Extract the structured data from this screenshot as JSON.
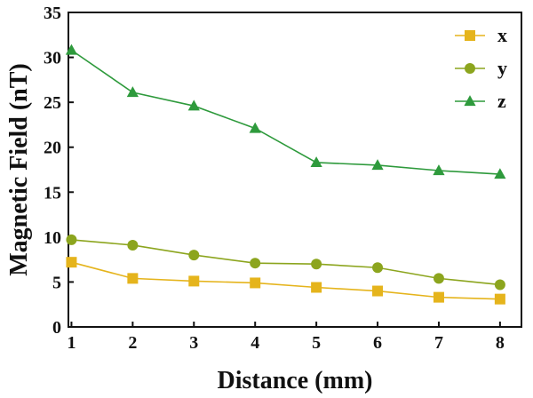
{
  "chart_data": {
    "type": "line",
    "title": "",
    "xlabel": "Distance (mm)",
    "ylabel": "Magnetic Field (nT)",
    "x": [
      1,
      2,
      3,
      4,
      5,
      6,
      7,
      8
    ],
    "xlim": [
      0.95,
      8.35
    ],
    "ylim": [
      0,
      35
    ],
    "xticks": [
      "1",
      "2",
      "3",
      "4",
      "5",
      "6",
      "7",
      "8"
    ],
    "yticks": [
      "0",
      "5",
      "10",
      "15",
      "20",
      "25",
      "30",
      "35"
    ],
    "grid": false,
    "legend_position": "top-right",
    "series": [
      {
        "name": "x",
        "marker": "square",
        "color": "#E5B41C",
        "values": [
          7.2,
          5.4,
          5.1,
          4.9,
          4.4,
          4.0,
          3.3,
          3.1
        ]
      },
      {
        "name": "y",
        "marker": "circle",
        "color": "#8CA51E",
        "values": [
          9.7,
          9.1,
          8.0,
          7.1,
          7.0,
          6.6,
          5.4,
          4.7
        ]
      },
      {
        "name": "z",
        "marker": "triangle",
        "color": "#2E9A3C",
        "values": [
          30.8,
          26.1,
          24.6,
          22.1,
          18.3,
          18.0,
          17.4,
          17.0
        ]
      }
    ]
  }
}
